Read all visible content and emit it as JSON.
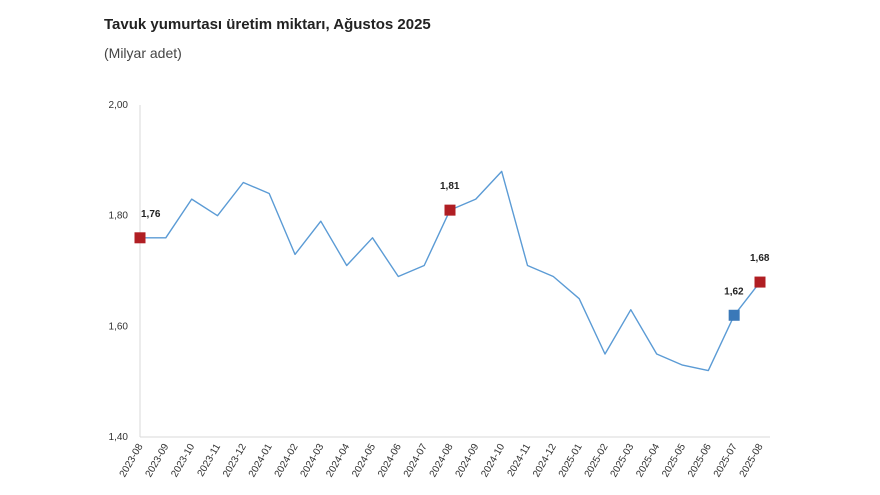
{
  "chart_data": {
    "type": "line",
    "title": "Tavuk yumurtası üretim miktarı, Ağustos 2025",
    "subtitle": "(Milyar adet)",
    "categories": [
      "2023-08",
      "2023-09",
      "2023-10",
      "2023-11",
      "2023-12",
      "2024-01",
      "2024-02",
      "2024-03",
      "2024-04",
      "2024-05",
      "2024-06",
      "2024-07",
      "2024-08",
      "2024-09",
      "2024-10",
      "2024-11",
      "2024-12",
      "2025-01",
      "2025-02",
      "2025-03",
      "2025-04",
      "2025-05",
      "2025-06",
      "2025-07",
      "2025-08"
    ],
    "values": [
      1.76,
      1.76,
      1.83,
      1.8,
      1.86,
      1.84,
      1.73,
      1.79,
      1.71,
      1.76,
      1.69,
      1.71,
      1.81,
      1.83,
      1.88,
      1.71,
      1.69,
      1.65,
      1.55,
      1.63,
      1.55,
      1.53,
      1.52,
      1.62,
      1.68
    ],
    "ylim": [
      1.4,
      2.0
    ],
    "yticks": [
      "1,40",
      "1,60",
      "1,80",
      "2,00"
    ],
    "line_color": "#5b9bd5",
    "highlights": [
      {
        "index": 0,
        "label": "1,76",
        "color": "#b01e23"
      },
      {
        "index": 12,
        "label": "1,81",
        "color": "#b01e23"
      },
      {
        "index": 23,
        "label": "1,62",
        "color": "#3a78b8"
      },
      {
        "index": 24,
        "label": "1,68",
        "color": "#b01e23"
      }
    ],
    "grid": false,
    "legend": "none"
  }
}
